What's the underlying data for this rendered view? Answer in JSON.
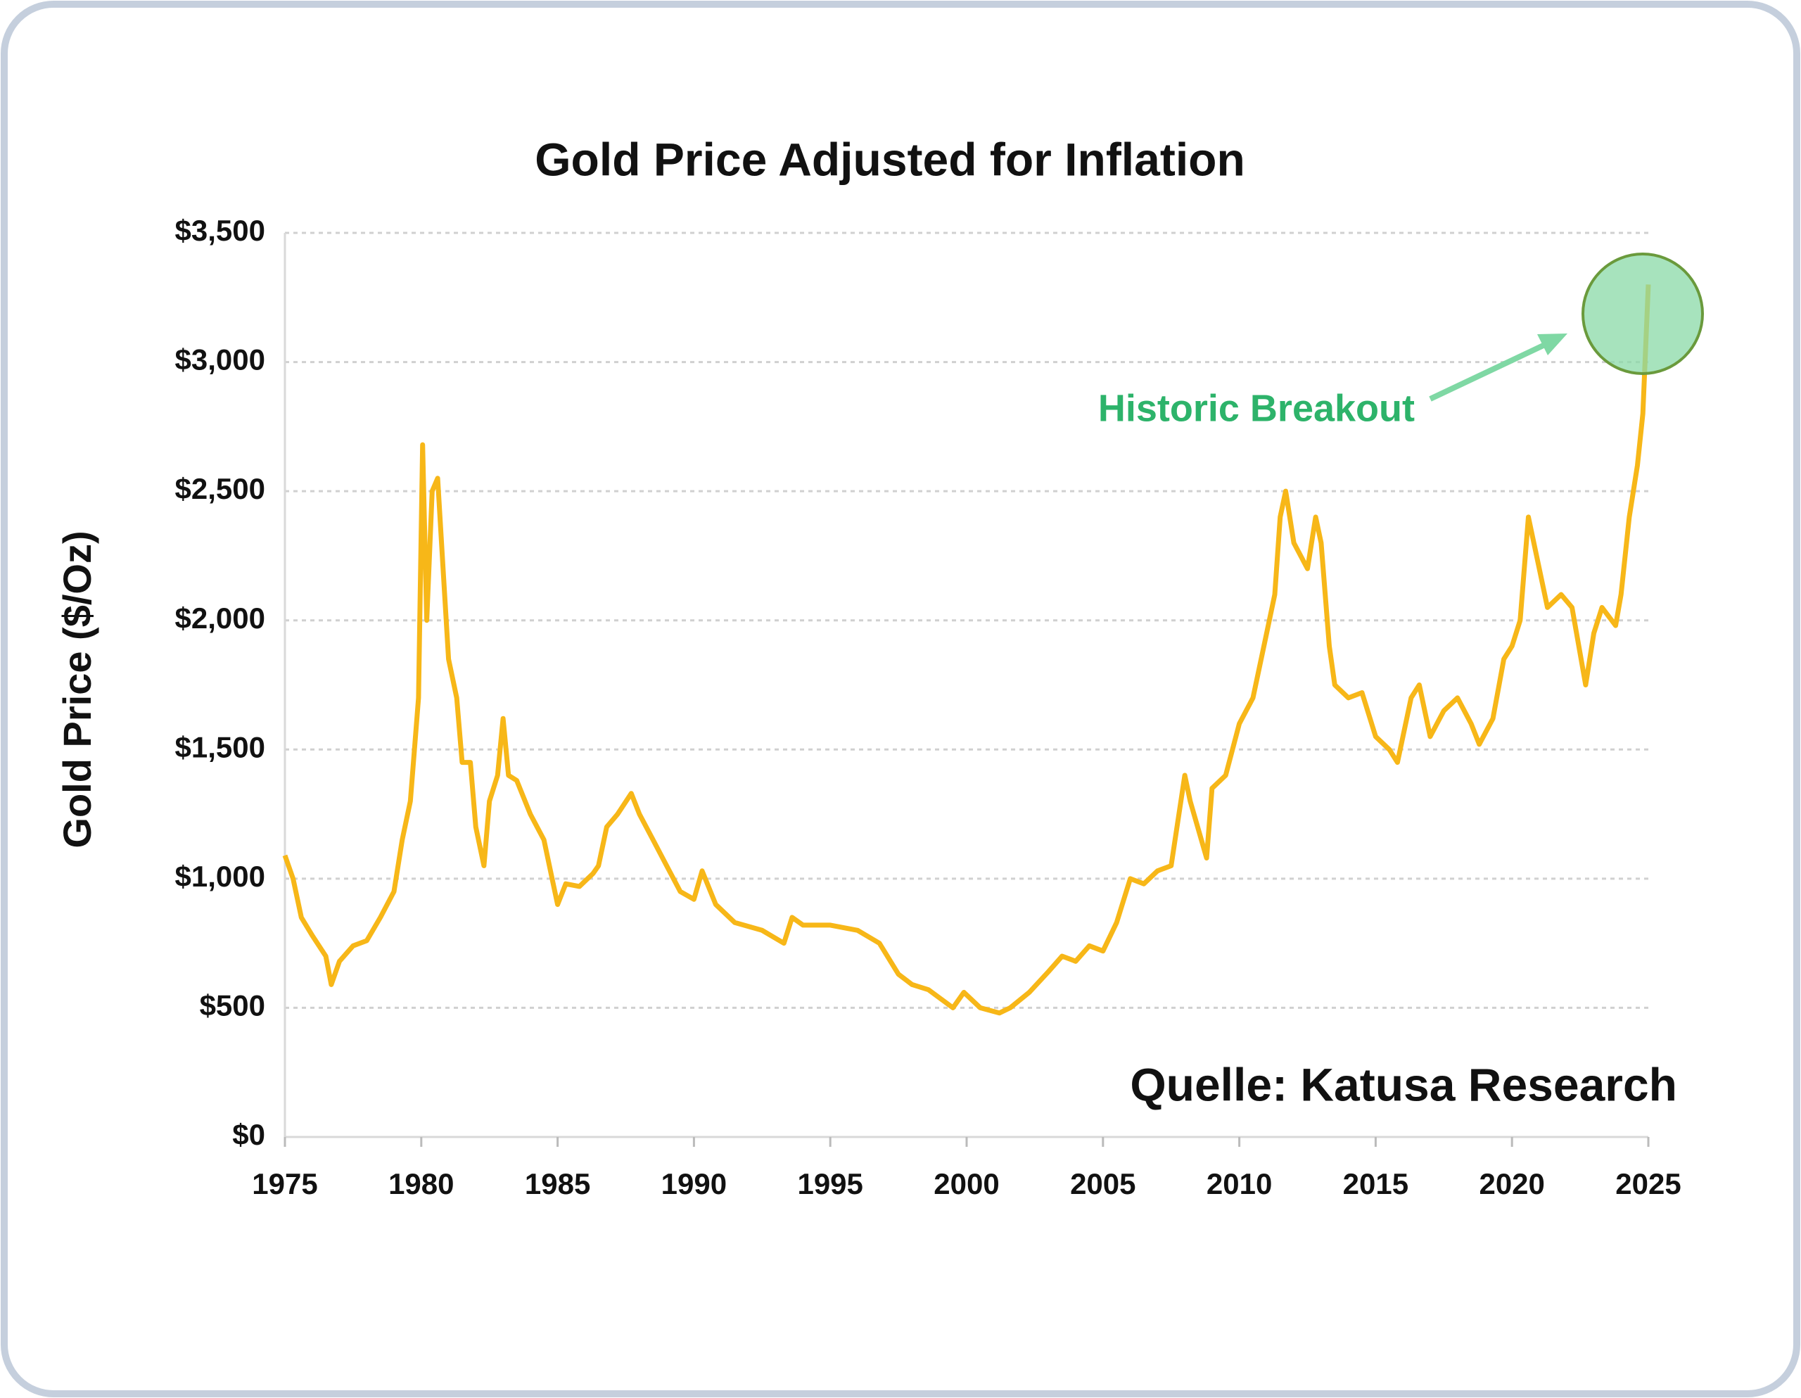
{
  "chart_data": {
    "type": "line",
    "title": "Gold Price Adjusted for Inflation",
    "y_label": "Gold Price ($/Oz)",
    "annotations": [
      "Historic Breakout",
      "Quelle: Katusa Research"
    ],
    "xlim": [
      1975,
      2025
    ],
    "xticks": [
      1975,
      1980,
      1985,
      1990,
      1995,
      2000,
      2005,
      2010,
      2015,
      2020,
      2025
    ],
    "ylim": [
      0,
      3500
    ],
    "yticks": [
      {
        "value": 0,
        "label": "$0"
      },
      {
        "value": 500,
        "label": "$500"
      },
      {
        "value": 1000,
        "label": "$1,000"
      },
      {
        "value": 1500,
        "label": "$1,500"
      },
      {
        "value": 2000,
        "label": "$2,000"
      },
      {
        "value": 2500,
        "label": "$2,500"
      },
      {
        "value": 3000,
        "label": "$3,000"
      },
      {
        "value": 3500,
        "label": "$3,500"
      }
    ],
    "grid": true,
    "x": [
      1975.0,
      1975.3,
      1975.6,
      1976.0,
      1976.5,
      1976.7,
      1977.0,
      1977.5,
      1978.0,
      1978.5,
      1979.0,
      1979.3,
      1979.6,
      1979.9,
      1980.05,
      1980.2,
      1980.4,
      1980.6,
      1980.8,
      1981.0,
      1981.3,
      1981.5,
      1981.8,
      1982.0,
      1982.3,
      1982.5,
      1982.8,
      1983.0,
      1983.2,
      1983.5,
      1984.0,
      1984.5,
      1984.8,
      1985.0,
      1985.3,
      1985.8,
      1986.3,
      1986.5,
      1986.8,
      1987.2,
      1987.7,
      1988.0,
      1988.5,
      1989.0,
      1989.5,
      1990.0,
      1990.3,
      1990.8,
      1991.5,
      1992.5,
      1993.3,
      1993.6,
      1994.0,
      1995.0,
      1996.0,
      1996.8,
      1997.5,
      1998.0,
      1998.6,
      1999.5,
      1999.9,
      2000.5,
      2001.2,
      2001.6,
      2002.3,
      2003.0,
      2003.5,
      2004.0,
      2004.5,
      2005.0,
      2005.5,
      2006.0,
      2006.5,
      2007.0,
      2007.5,
      2008.0,
      2008.2,
      2008.8,
      2009.0,
      2009.5,
      2010.0,
      2010.5,
      2011.0,
      2011.3,
      2011.5,
      2011.7,
      2012.0,
      2012.5,
      2012.8,
      2013.0,
      2013.3,
      2013.5,
      2014.0,
      2014.5,
      2015.0,
      2015.5,
      2015.8,
      2016.3,
      2016.6,
      2017.0,
      2017.5,
      2018.0,
      2018.5,
      2018.8,
      2019.3,
      2019.7,
      2020.0,
      2020.3,
      2020.6,
      2021.0,
      2021.3,
      2021.8,
      2022.2,
      2022.7,
      2023.0,
      2023.3,
      2023.8,
      2024.0,
      2024.3,
      2024.6,
      2024.8,
      2025.0
    ],
    "series": [
      {
        "color": "#f7b718",
        "values": [
          1090,
          1000,
          850,
          780,
          700,
          590,
          680,
          740,
          760,
          850,
          950,
          1150,
          1300,
          1700,
          2680,
          2000,
          2500,
          2550,
          2200,
          1850,
          1700,
          1450,
          1450,
          1200,
          1050,
          1300,
          1400,
          1620,
          1400,
          1380,
          1250,
          1150,
          1000,
          900,
          980,
          970,
          1020,
          1050,
          1200,
          1250,
          1330,
          1250,
          1150,
          1050,
          950,
          920,
          1030,
          900,
          830,
          800,
          750,
          850,
          820,
          820,
          800,
          750,
          630,
          590,
          570,
          500,
          560,
          500,
          480,
          500,
          560,
          640,
          700,
          680,
          740,
          720,
          830,
          1000,
          980,
          1030,
          1050,
          1400,
          1300,
          1080,
          1350,
          1400,
          1600,
          1700,
          1950,
          2100,
          2400,
          2500,
          2300,
          2200,
          2400,
          2300,
          1900,
          1750,
          1700,
          1720,
          1550,
          1500,
          1450,
          1700,
          1750,
          1550,
          1650,
          1700,
          1600,
          1520,
          1620,
          1850,
          1900,
          2000,
          2400,
          2200,
          2050,
          2100,
          2050,
          1750,
          1950,
          2050,
          1980,
          2100,
          2400,
          2600,
          2800,
          3300
        ]
      }
    ]
  }
}
